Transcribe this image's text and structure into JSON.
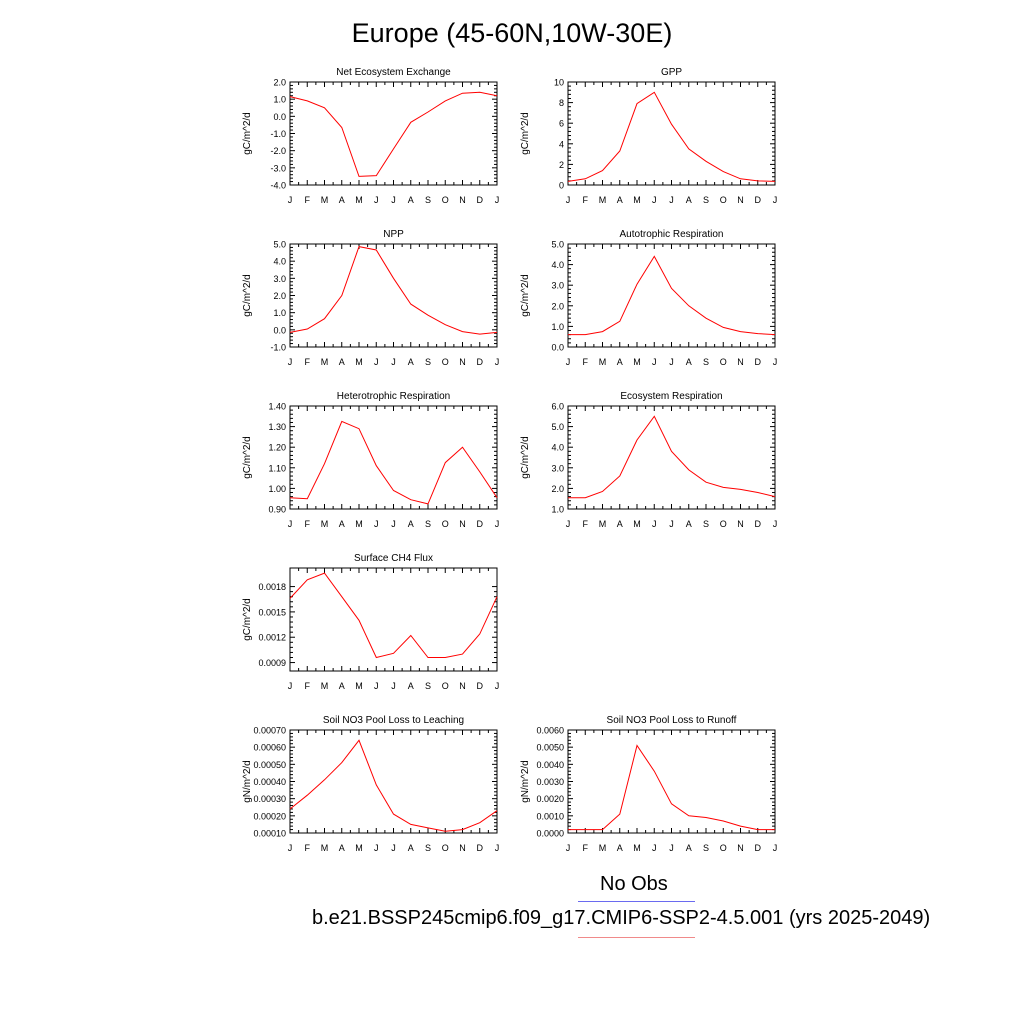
{
  "title": "Europe (45-60N,10W-30E)",
  "legend": {
    "obs_label": "No Obs",
    "obs_color": "#6a6af0",
    "model_label": "b.e21.BSSP245cmip6.f09_g17.CMIP6-SSP2-4.5.001 (yrs 2025-2049)",
    "model_color": "#f08a8a"
  },
  "series_color": "#ff0000",
  "months": [
    "J",
    "F",
    "M",
    "A",
    "M",
    "J",
    "J",
    "A",
    "S",
    "O",
    "N",
    "D",
    "J"
  ],
  "chart_data": [
    {
      "type": "line",
      "title": "Net Ecosystem Exchange",
      "ylabel": "gC/m^2/d",
      "ylim": [
        -4.0,
        2.0
      ],
      "yticks": [
        -4.0,
        -3.0,
        -2.0,
        -1.0,
        0.0,
        1.0,
        2.0
      ],
      "ytick_labels": [
        "-4.0",
        "-3.0",
        "-2.0",
        "-1.0",
        "0.0",
        "1.0",
        "2.0"
      ],
      "values": [
        1.15,
        0.9,
        0.5,
        -0.65,
        -3.5,
        -3.45,
        -1.9,
        -0.35,
        0.25,
        0.9,
        1.35,
        1.4,
        1.2
      ]
    },
    {
      "type": "line",
      "title": "GPP",
      "ylabel": "gC/m^2/d",
      "ylim": [
        0,
        10
      ],
      "yticks": [
        0,
        2,
        4,
        6,
        8,
        10
      ],
      "ytick_labels": [
        "0",
        "2",
        "4",
        "6",
        "8",
        "10"
      ],
      "values": [
        0.35,
        0.6,
        1.4,
        3.3,
        7.9,
        9.0,
        5.9,
        3.5,
        2.3,
        1.3,
        0.6,
        0.4,
        0.35
      ]
    },
    {
      "type": "line",
      "title": "NPP",
      "ylabel": "gC/m^2/d",
      "ylim": [
        -1.0,
        5.0
      ],
      "yticks": [
        -1.0,
        0.0,
        1.0,
        2.0,
        3.0,
        4.0,
        5.0
      ],
      "ytick_labels": [
        "-1.0",
        "0.0",
        "1.0",
        "2.0",
        "3.0",
        "4.0",
        "5.0"
      ],
      "values": [
        -0.15,
        0.05,
        0.65,
        2.0,
        4.85,
        4.65,
        3.0,
        1.5,
        0.85,
        0.3,
        -0.1,
        -0.25,
        -0.15
      ]
    },
    {
      "type": "line",
      "title": "Autotrophic Respiration",
      "ylabel": "gC/m^2/d",
      "ylim": [
        0.0,
        5.0
      ],
      "yticks": [
        0.0,
        1.0,
        2.0,
        3.0,
        4.0,
        5.0
      ],
      "ytick_labels": [
        "0.0",
        "1.0",
        "2.0",
        "3.0",
        "4.0",
        "5.0"
      ],
      "values": [
        0.6,
        0.6,
        0.75,
        1.25,
        3.05,
        4.4,
        2.85,
        2.0,
        1.4,
        0.95,
        0.75,
        0.65,
        0.6
      ]
    },
    {
      "type": "line",
      "title": "Heterotrophic Respiration",
      "ylabel": "gC/m^2/d",
      "ylim": [
        0.9,
        1.4
      ],
      "yticks": [
        0.9,
        1.0,
        1.1,
        1.2,
        1.3,
        1.4
      ],
      "ytick_labels": [
        "0.90",
        "1.00",
        "1.10",
        "1.20",
        "1.30",
        "1.40"
      ],
      "values": [
        0.955,
        0.95,
        1.12,
        1.325,
        1.29,
        1.11,
        0.99,
        0.945,
        0.925,
        1.125,
        1.2,
        1.08,
        0.955
      ]
    },
    {
      "type": "line",
      "title": "Ecosystem Respiration",
      "ylabel": "gC/m^2/d",
      "ylim": [
        1.0,
        6.0
      ],
      "yticks": [
        1.0,
        2.0,
        3.0,
        4.0,
        5.0,
        6.0
      ],
      "ytick_labels": [
        "1.0",
        "2.0",
        "3.0",
        "4.0",
        "5.0",
        "6.0"
      ],
      "values": [
        1.55,
        1.55,
        1.85,
        2.6,
        4.35,
        5.5,
        3.8,
        2.9,
        2.3,
        2.05,
        1.95,
        1.8,
        1.6
      ]
    },
    {
      "type": "line",
      "title": "Surface CH4 Flux",
      "ylabel": "gC/m^2/d",
      "ylim": [
        0.0008,
        0.00202
      ],
      "yticks": [
        0.0009,
        0.0012,
        0.0015,
        0.0018
      ],
      "ytick_labels": [
        "0.0009",
        "0.0012",
        "0.0015",
        "0.0018"
      ],
      "values": [
        0.00166,
        0.00188,
        0.00196,
        0.00168,
        0.0014,
        0.00096,
        0.00101,
        0.00122,
        0.00096,
        0.00096,
        0.001,
        0.00124,
        0.00168
      ]
    },
    {
      "type": "line",
      "title": "Soil NO3 Pool Loss to Leaching",
      "ylabel": "gN/m^2/d",
      "ylim": [
        0.0001,
        0.0007
      ],
      "yticks": [
        0.0001,
        0.0002,
        0.0003,
        0.0004,
        0.0005,
        0.0006,
        0.0007
      ],
      "ytick_labels": [
        "0.00010",
        "0.00020",
        "0.00030",
        "0.00040",
        "0.00050",
        "0.00060",
        "0.00070"
      ],
      "values": [
        0.00024,
        0.00032,
        0.00041,
        0.00051,
        0.00064,
        0.00038,
        0.00021,
        0.00015,
        0.00013,
        0.00011,
        0.00012,
        0.00016,
        0.00023
      ]
    },
    {
      "type": "line",
      "title": "Soil NO3 Pool Loss to Runoff",
      "ylabel": "gN/m^2/d",
      "ylim": [
        0.0,
        0.006
      ],
      "yticks": [
        0.0,
        0.001,
        0.002,
        0.003,
        0.004,
        0.005,
        0.006
      ],
      "ytick_labels": [
        "0.0000",
        "0.0010",
        "0.0020",
        "0.0030",
        "0.0040",
        "0.0050",
        "0.0060"
      ],
      "values": [
        0.0002,
        0.0002,
        0.0002,
        0.0011,
        0.0051,
        0.0036,
        0.0017,
        0.001,
        0.0009,
        0.0007,
        0.0004,
        0.0002,
        0.0002
      ]
    }
  ]
}
